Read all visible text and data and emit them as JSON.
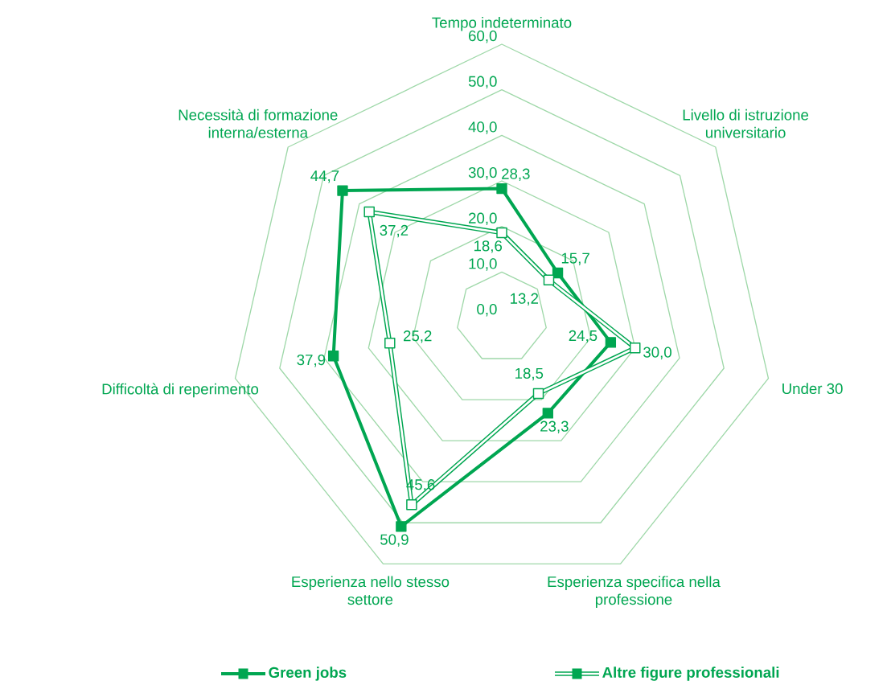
{
  "chart_data": {
    "type": "radar",
    "categories": [
      "Tempo indeterminato",
      "Livello di istruzione universitario",
      "Under 30",
      "Esperienza specifica nella professione",
      "Esperienza nello stesso settore",
      "Difficoltà di reperimento",
      "Necessità di formazione interna/esterna"
    ],
    "series": [
      {
        "name": "Green jobs",
        "color": "#00a651",
        "values": [
          28.3,
          15.7,
          24.5,
          23.3,
          50.9,
          37.9,
          44.7
        ],
        "value_labels": [
          "28,3",
          "15,7",
          "24,5",
          "23,3",
          "50,9",
          "37,9",
          "44,7"
        ]
      },
      {
        "name": "Altre figure professionali",
        "color": "#00a651",
        "values": [
          18.6,
          13.2,
          30.0,
          18.5,
          45.6,
          25.2,
          37.2
        ],
        "value_labels": [
          "18,6",
          "13,2",
          "30,0",
          "18,5",
          "45,6",
          "25,2",
          "37,2"
        ]
      }
    ],
    "ylim": [
      0,
      60
    ],
    "yticks": [
      {
        "value": 0,
        "label": "0,0"
      },
      {
        "value": 10,
        "label": "10,0"
      },
      {
        "value": 20,
        "label": "20,0"
      },
      {
        "value": 30,
        "label": "30,0"
      },
      {
        "value": 40,
        "label": "40,0"
      },
      {
        "value": 50,
        "label": "50,0"
      },
      {
        "value": 60,
        "label": "60,0"
      }
    ],
    "grid": true,
    "legend": "bottom",
    "marker": "square"
  }
}
